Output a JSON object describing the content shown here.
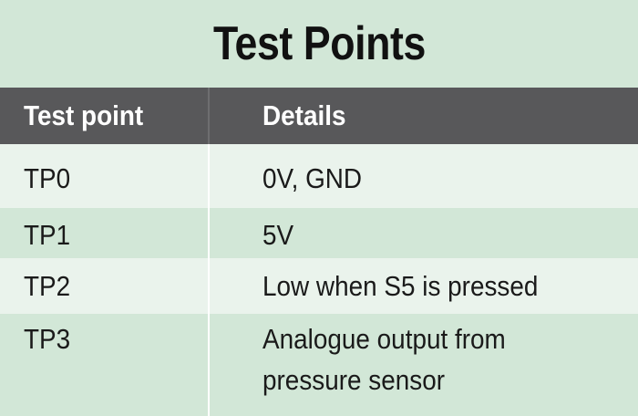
{
  "title": "Test Points",
  "columns": {
    "test_point": "Test point",
    "details": "Details"
  },
  "rows": [
    {
      "test_point": "TP0",
      "details": "0V, GND"
    },
    {
      "test_point": "TP1",
      "details": "5V"
    },
    {
      "test_point": "TP2",
      "details": "Low when S5 is pressed"
    },
    {
      "test_point": "TP3",
      "details_line1": "Analogue output from",
      "details_line2": "pressure sensor"
    }
  ],
  "colors": {
    "title_background": "#d2e7d7",
    "header_background": "#58585a",
    "row_dark": "#d2e7d7",
    "row_light": "#eaf3ec",
    "text": "#1a1a1a",
    "header_text": "#ffffff"
  }
}
